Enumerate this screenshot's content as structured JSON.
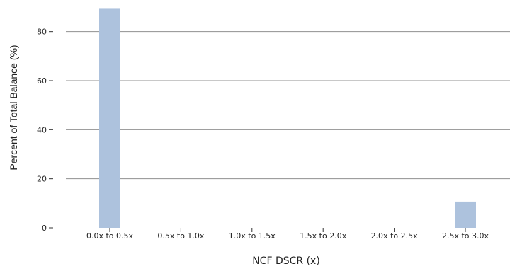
{
  "chart_data": {
    "type": "bar",
    "categories": [
      "0.0x to 0.5x",
      "0.5x to 1.0x",
      "1.0x to 1.5x",
      "1.5x to 2.0x",
      "2.0x to 2.5x",
      "2.5x to 3.0x"
    ],
    "values": [
      89.3,
      0,
      0,
      0,
      0,
      10.7
    ],
    "title": "",
    "xlabel": "NCF DSCR (x)",
    "ylabel": "Percent of Total Balance (%)",
    "ylim": [
      0,
      90
    ],
    "yticks": [
      0,
      20,
      40,
      60,
      80
    ],
    "grid": "horizontal",
    "bar_color": "#adc2dd",
    "grid_color": "#909090"
  }
}
